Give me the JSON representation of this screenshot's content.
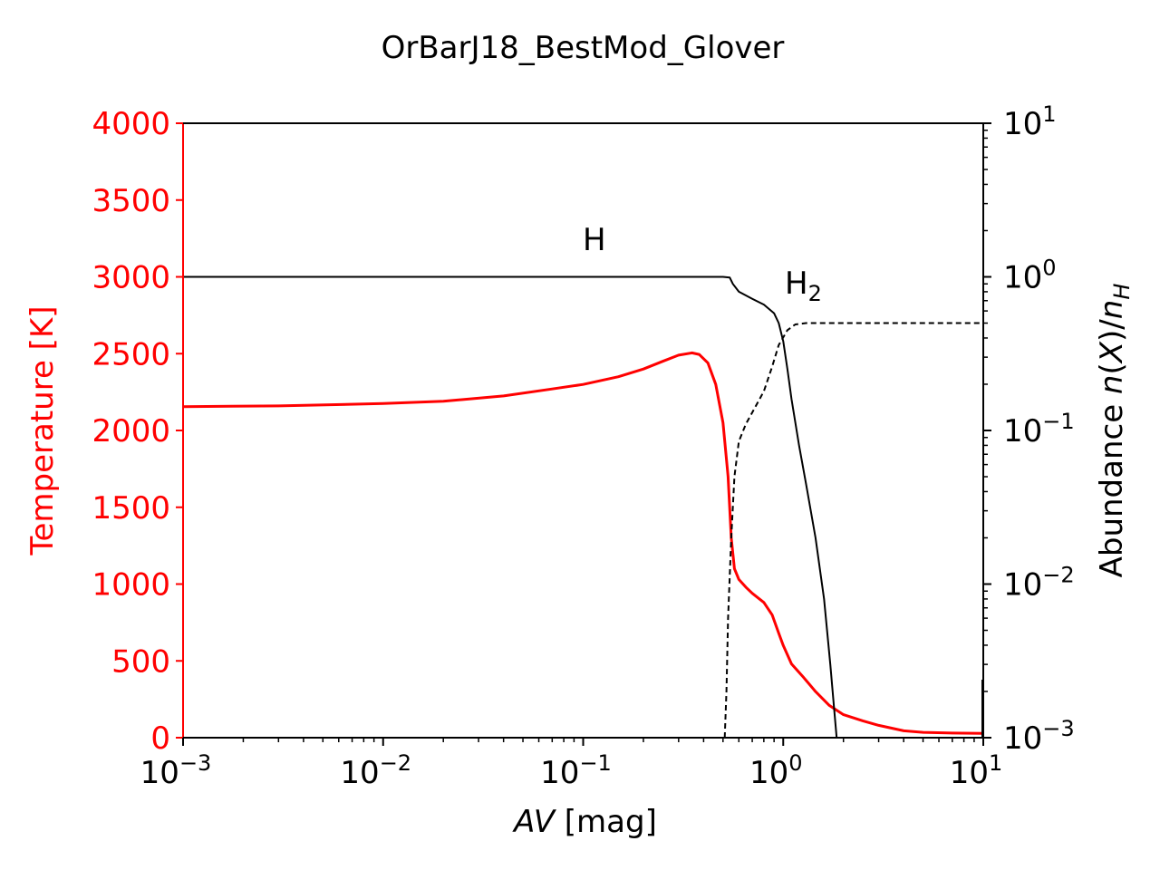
{
  "chart_data": {
    "type": "line",
    "title": "OrBarJ18_BestMod_Glover",
    "x_axis": {
      "label_italic": "AV",
      "label_rest": " [mag]",
      "scale": "log",
      "range": [
        0.001,
        10
      ],
      "ticks": [
        {
          "value": 0.001,
          "base": "10",
          "exp": "−3"
        },
        {
          "value": 0.01,
          "base": "10",
          "exp": "−2"
        },
        {
          "value": 0.1,
          "base": "10",
          "exp": "−1"
        },
        {
          "value": 1,
          "base": "10",
          "exp": "0"
        },
        {
          "value": 10,
          "base": "10",
          "exp": "1"
        }
      ]
    },
    "y_left": {
      "label": "Temperature [K]",
      "color": "#ff0000",
      "scale": "linear",
      "range": [
        0,
        4000
      ],
      "ticks": [
        "0",
        "500",
        "1000",
        "1500",
        "2000",
        "2500",
        "3000",
        "3500",
        "4000"
      ]
    },
    "y_right": {
      "label_pre": "Abundance ",
      "label_n1": "n",
      "label_paren": "(",
      "label_x": "X",
      "label_paren2": ")/",
      "label_n2": "n",
      "label_sub": "H",
      "color": "#000000",
      "scale": "log",
      "range": [
        0.001,
        10
      ],
      "ticks": [
        {
          "value": 10,
          "base": "10",
          "exp": "1"
        },
        {
          "value": 1,
          "base": "10",
          "exp": "0"
        },
        {
          "value": 0.1,
          "base": "10",
          "exp": "−1"
        },
        {
          "value": 0.01,
          "base": "10",
          "exp": "−2"
        },
        {
          "value": 0.001,
          "base": "10",
          "exp": "−3"
        }
      ]
    },
    "annotations": [
      {
        "base": "H",
        "sub": ""
      },
      {
        "base": "H",
        "sub": "2"
      }
    ],
    "series": [
      {
        "axis": "left",
        "color": "#ff0000",
        "style": "solid",
        "points": [
          [
            0.001,
            2155
          ],
          [
            0.003,
            2160
          ],
          [
            0.01,
            2175
          ],
          [
            0.02,
            2190
          ],
          [
            0.04,
            2225
          ],
          [
            0.07,
            2270
          ],
          [
            0.1,
            2300
          ],
          [
            0.15,
            2350
          ],
          [
            0.2,
            2400
          ],
          [
            0.25,
            2450
          ],
          [
            0.3,
            2490
          ],
          [
            0.35,
            2505
          ],
          [
            0.38,
            2495
          ],
          [
            0.42,
            2440
          ],
          [
            0.46,
            2300
          ],
          [
            0.5,
            2050
          ],
          [
            0.53,
            1700
          ],
          [
            0.55,
            1300
          ],
          [
            0.57,
            1100
          ],
          [
            0.6,
            1030
          ],
          [
            0.65,
            980
          ],
          [
            0.7,
            940
          ],
          [
            0.8,
            880
          ],
          [
            0.88,
            800
          ],
          [
            0.95,
            680
          ],
          [
            1.0,
            600
          ],
          [
            1.1,
            480
          ],
          [
            1.25,
            400
          ],
          [
            1.45,
            300
          ],
          [
            1.7,
            210
          ],
          [
            2.0,
            150
          ],
          [
            2.5,
            110
          ],
          [
            3.0,
            80
          ],
          [
            4.0,
            45
          ],
          [
            5.0,
            35
          ],
          [
            7.0,
            30
          ],
          [
            10.0,
            28
          ]
        ]
      },
      {
        "axis": "right",
        "name": "H",
        "color": "#000000",
        "style": "solid",
        "points": [
          [
            0.001,
            1.0
          ],
          [
            0.1,
            1.0
          ],
          [
            0.5,
            1.0
          ],
          [
            0.54,
            0.99
          ],
          [
            0.56,
            0.9
          ],
          [
            0.6,
            0.8
          ],
          [
            0.7,
            0.72
          ],
          [
            0.8,
            0.66
          ],
          [
            0.9,
            0.58
          ],
          [
            0.95,
            0.5
          ],
          [
            1.0,
            0.38
          ],
          [
            1.05,
            0.25
          ],
          [
            1.1,
            0.16
          ],
          [
            1.2,
            0.08
          ],
          [
            1.3,
            0.045
          ],
          [
            1.45,
            0.02
          ],
          [
            1.6,
            0.008
          ],
          [
            1.72,
            0.003
          ],
          [
            1.8,
            0.0015
          ],
          [
            1.85,
            0.001
          ]
        ]
      },
      {
        "axis": "right",
        "name": "H2",
        "color": "#000000",
        "style": "dashed",
        "points": [
          [
            0.51,
            0.001
          ],
          [
            0.52,
            0.002
          ],
          [
            0.53,
            0.006
          ],
          [
            0.55,
            0.02
          ],
          [
            0.57,
            0.05
          ],
          [
            0.6,
            0.085
          ],
          [
            0.65,
            0.11
          ],
          [
            0.72,
            0.14
          ],
          [
            0.8,
            0.18
          ],
          [
            0.88,
            0.26
          ],
          [
            0.95,
            0.36
          ],
          [
            1.05,
            0.45
          ],
          [
            1.15,
            0.49
          ],
          [
            1.3,
            0.5
          ],
          [
            2.0,
            0.5
          ],
          [
            10.0,
            0.5
          ]
        ]
      }
    ]
  }
}
